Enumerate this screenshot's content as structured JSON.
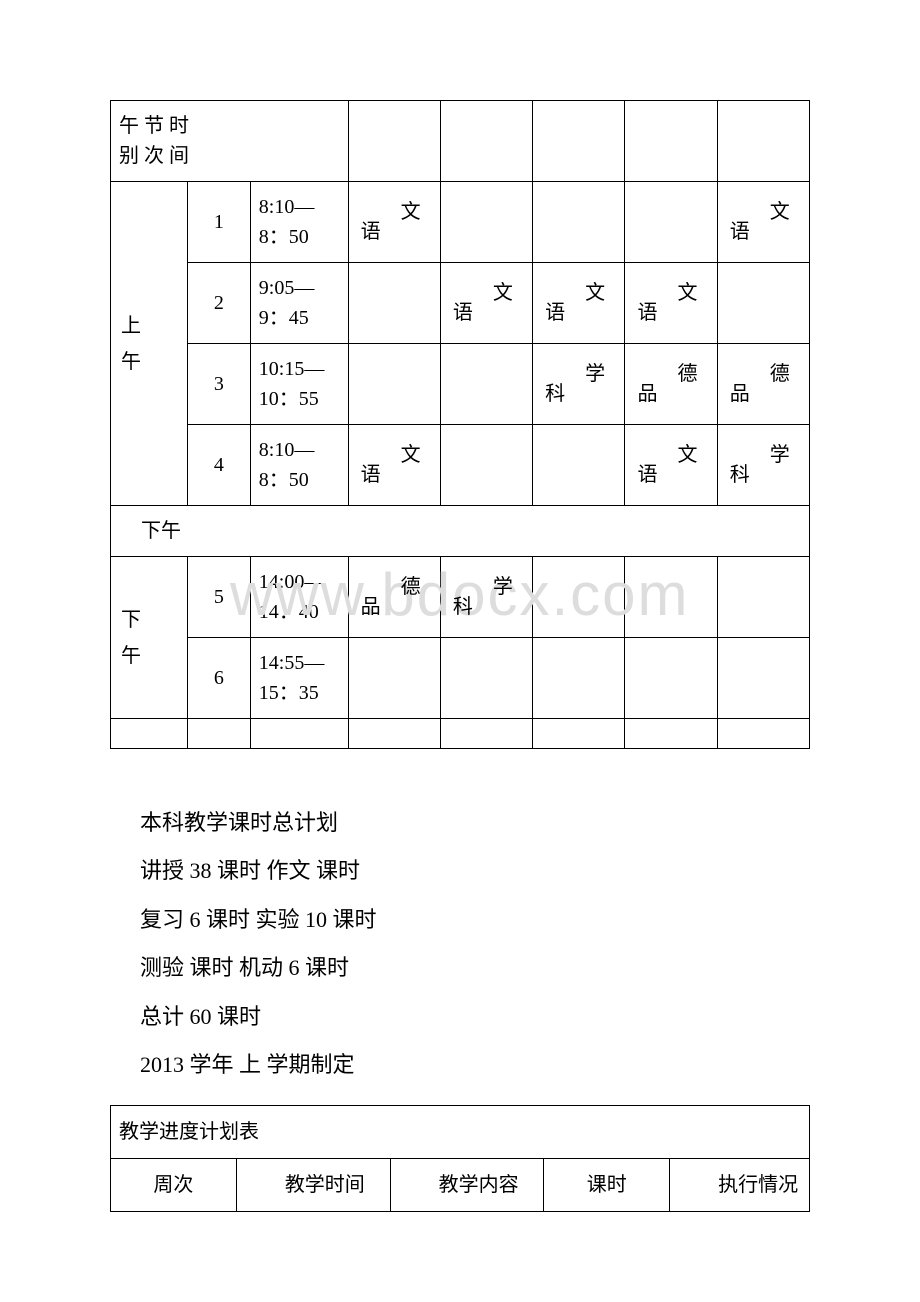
{
  "schedule": {
    "header": {
      "col1_lines": [
        "午 节 时",
        "别 次 间"
      ]
    },
    "am_label": "上午",
    "pm_label": "下午",
    "rows_am": [
      {
        "num": "1",
        "time": "8:10—8：50",
        "cells": [
          "语文",
          "",
          "",
          "",
          "语文"
        ]
      },
      {
        "num": "2",
        "time": "9:05—9：45",
        "cells": [
          "",
          "语文",
          "语文",
          "语文",
          ""
        ]
      },
      {
        "num": "3",
        "time": "10:15—10：55",
        "cells": [
          "",
          "",
          "科学",
          "品德",
          "品德"
        ]
      },
      {
        "num": "4",
        "time": "8:10—8：50",
        "cells": [
          "语文",
          "",
          "",
          "语文",
          "科学"
        ]
      }
    ],
    "afternoon_divider": "下午",
    "rows_pm": [
      {
        "num": "5",
        "time": "14:00—14：40",
        "cells": [
          "品德",
          "科学",
          "",
          "",
          ""
        ]
      },
      {
        "num": "6",
        "time": "14:55—15：35",
        "cells": [
          "",
          "",
          "",
          "",
          ""
        ]
      }
    ]
  },
  "body": {
    "line1": "本科教学课时总计划",
    "line2": "讲授 38 课时 作文 课时",
    "line3": "复习 6 课时 实验 10 课时",
    "line4": "测验 课时 机动 6 课时",
    "line5": "总计 60 课时",
    "line6": " 2013 学年 上 学期制定"
  },
  "plan": {
    "title": "教学进度计划表",
    "headers": [
      "周次",
      "教学时间",
      "教学内容",
      "课时",
      "执行情况"
    ]
  },
  "watermark": "www.bdocx.com",
  "colors": {
    "text": "#000000",
    "border": "#000000",
    "background": "#ffffff",
    "watermark": "#dddddd"
  }
}
